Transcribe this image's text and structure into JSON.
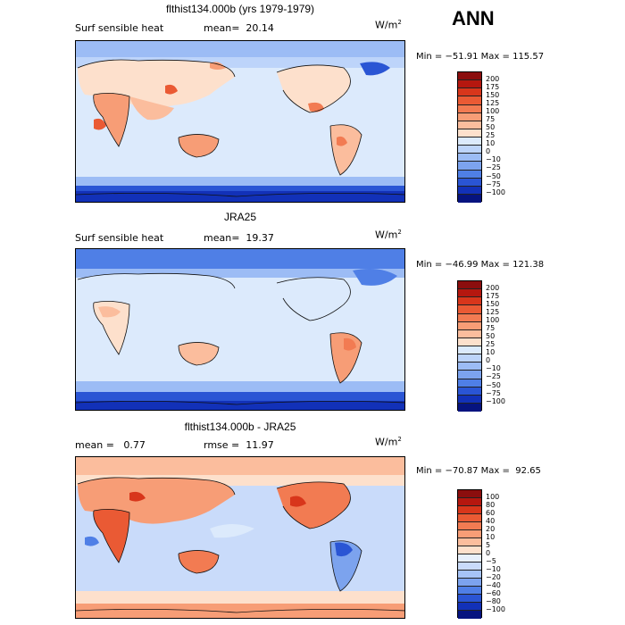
{
  "season_label": "ANN",
  "units": {
    "base": "W/m",
    "exp": "2"
  },
  "panels": [
    {
      "title": "flthist134.000b (yrs 1979-1979)",
      "left_text": "Surf sensible heat",
      "right_text": "mean=  20.14",
      "minmax": "Min = −51.91 Max = 115.57",
      "colorbar": {
        "labels": [
          "200",
          "175",
          "150",
          "125",
          "100",
          "75",
          "50",
          "25",
          "10",
          "0",
          "−10",
          "−25",
          "−50",
          "−75",
          "−100"
        ],
        "colors": [
          "#8b0e0e",
          "#b5170f",
          "#d8361b",
          "#ea5a34",
          "#f27b52",
          "#f79d76",
          "#fbbd9d",
          "#fde0cc",
          "#dceafc",
          "#bdd4fa",
          "#9cbcf5",
          "#7ca3ee",
          "#4f7fe6",
          "#2a55d4",
          "#1231b8",
          "#06137f"
        ]
      }
    },
    {
      "title": "JRA25",
      "left_text": "Surf sensible heat",
      "right_text": "mean=  19.37",
      "minmax": "Min = −46.99 Max = 121.38",
      "colorbar": {
        "labels": [
          "200",
          "175",
          "150",
          "125",
          "100",
          "75",
          "50",
          "25",
          "10",
          "0",
          "−10",
          "−25",
          "−50",
          "−75",
          "−100"
        ],
        "colors": [
          "#8b0e0e",
          "#b5170f",
          "#d8361b",
          "#ea5a34",
          "#f27b52",
          "#f79d76",
          "#fbbd9d",
          "#fde0cc",
          "#dceafc",
          "#bdd4fa",
          "#9cbcf5",
          "#7ca3ee",
          "#4f7fe6",
          "#2a55d4",
          "#1231b8",
          "#06137f"
        ]
      }
    },
    {
      "title": "flthist134.000b - JRA25",
      "left_text": "mean =   0.77",
      "right_text": "rmse =  11.97",
      "minmax": "Min = −70.87 Max =  92.65",
      "colorbar": {
        "labels": [
          "100",
          "80",
          "60",
          "40",
          "20",
          "10",
          "5",
          "0",
          "−5",
          "−10",
          "−20",
          "−40",
          "−60",
          "−80",
          "−100"
        ],
        "colors": [
          "#8b0e0e",
          "#b5170f",
          "#d8361b",
          "#ea5a34",
          "#f27b52",
          "#f79d76",
          "#fbbd9d",
          "#fde0cc",
          "#e8f0fc",
          "#c9dbfa",
          "#a6c3f6",
          "#7ca3ee",
          "#4f7fe6",
          "#2a55d4",
          "#1231b8",
          "#06137f"
        ]
      }
    }
  ]
}
